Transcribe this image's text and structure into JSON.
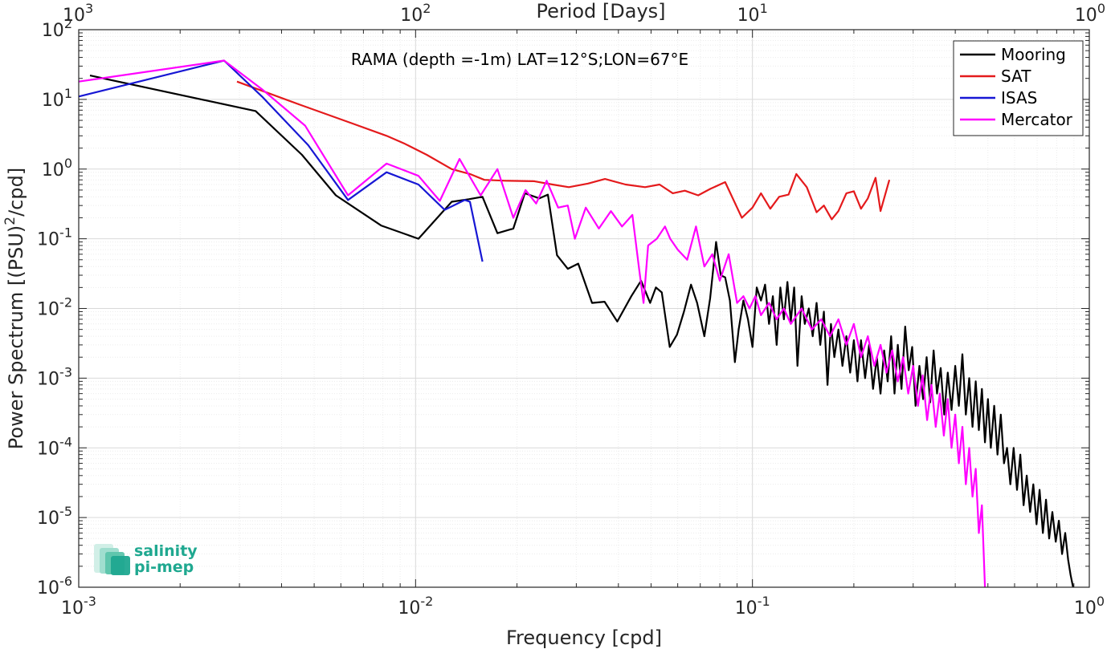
{
  "chart_data": {
    "type": "line",
    "annotation": "RAMA (depth =-1m) LAT=12°S;LON=67°E",
    "xlabel": "Frequency [cpd]",
    "ylabel": "Power Spectrum [(PSU)²/cpd]",
    "top_xlabel": "Period [Days]",
    "xscale": "log",
    "yscale": "log",
    "xlim": [
      0.001,
      1
    ],
    "ylim": [
      1e-06,
      100
    ],
    "grid": true,
    "legend_position": "top-right",
    "x_ticks": [
      {
        "value": 0.001,
        "base": "10",
        "exp": "-3"
      },
      {
        "value": 0.01,
        "base": "10",
        "exp": "-2"
      },
      {
        "value": 0.1,
        "base": "10",
        "exp": "-1"
      },
      {
        "value": 1,
        "base": "10",
        "exp": "0"
      }
    ],
    "y_ticks": [
      {
        "value": 1e-06,
        "base": "10",
        "exp": "-6"
      },
      {
        "value": 1e-05,
        "base": "10",
        "exp": "-5"
      },
      {
        "value": 0.0001,
        "base": "10",
        "exp": "-4"
      },
      {
        "value": 0.001,
        "base": "10",
        "exp": "-3"
      },
      {
        "value": 0.01,
        "base": "10",
        "exp": "-2"
      },
      {
        "value": 0.1,
        "base": "10",
        "exp": "-1"
      },
      {
        "value": 1,
        "base": "10",
        "exp": "0"
      },
      {
        "value": 10,
        "base": "10",
        "exp": "1"
      },
      {
        "value": 100,
        "base": "10",
        "exp": "2"
      }
    ],
    "top_ticks": [
      {
        "value": 0.001,
        "base": "10",
        "exp": "3"
      },
      {
        "value": 0.01,
        "base": "10",
        "exp": "2"
      },
      {
        "value": 0.1,
        "base": "10",
        "exp": "1"
      },
      {
        "value": 1,
        "base": "10",
        "exp": "0"
      }
    ],
    "series": [
      {
        "name": "Mooring",
        "color": "#000000",
        "points": [
          [
            0.00108,
            22
          ],
          [
            0.00335,
            6.8
          ],
          [
            0.0046,
            1.6
          ],
          [
            0.0058,
            0.42
          ],
          [
            0.0079,
            0.155
          ],
          [
            0.0102,
            0.1
          ],
          [
            0.0128,
            0.34
          ],
          [
            0.0144,
            0.37
          ],
          [
            0.0158,
            0.4
          ],
          [
            0.0175,
            0.12
          ],
          [
            0.0195,
            0.14
          ],
          [
            0.0211,
            0.45
          ],
          [
            0.0233,
            0.38
          ],
          [
            0.0247,
            0.43
          ],
          [
            0.0263,
            0.058
          ],
          [
            0.0283,
            0.037
          ],
          [
            0.0304,
            0.044
          ],
          [
            0.0334,
            0.012
          ],
          [
            0.0364,
            0.0125
          ],
          [
            0.0397,
            0.0065
          ],
          [
            0.0437,
            0.015
          ],
          [
            0.0467,
            0.025
          ],
          [
            0.0497,
            0.012
          ],
          [
            0.0517,
            0.02
          ],
          [
            0.0538,
            0.017
          ],
          [
            0.0568,
            0.0028
          ],
          [
            0.0597,
            0.0042
          ],
          [
            0.0626,
            0.009
          ],
          [
            0.0657,
            0.022
          ],
          [
            0.0685,
            0.012
          ],
          [
            0.072,
            0.004
          ],
          [
            0.0749,
            0.014
          ],
          [
            0.078,
            0.09
          ],
          [
            0.0805,
            0.03
          ],
          [
            0.083,
            0.028
          ],
          [
            0.0857,
            0.013
          ],
          [
            0.0887,
            0.0017
          ],
          [
            0.091,
            0.005
          ],
          [
            0.094,
            0.013
          ],
          [
            0.097,
            0.007
          ],
          [
            0.1,
            0.0028
          ],
          [
            0.103,
            0.02
          ],
          [
            0.106,
            0.013
          ],
          [
            0.109,
            0.022
          ],
          [
            0.112,
            0.006
          ],
          [
            0.115,
            0.015
          ],
          [
            0.118,
            0.003
          ],
          [
            0.121,
            0.02
          ],
          [
            0.124,
            0.007
          ],
          [
            0.127,
            0.024
          ],
          [
            0.13,
            0.0065
          ],
          [
            0.133,
            0.02
          ],
          [
            0.136,
            0.0015
          ],
          [
            0.14,
            0.015
          ],
          [
            0.143,
            0.006
          ],
          [
            0.147,
            0.01
          ],
          [
            0.151,
            0.004
          ],
          [
            0.155,
            0.012
          ],
          [
            0.159,
            0.003
          ],
          [
            0.163,
            0.009
          ],
          [
            0.167,
            0.0008
          ],
          [
            0.171,
            0.006
          ],
          [
            0.175,
            0.002
          ],
          [
            0.18,
            0.005
          ],
          [
            0.185,
            0.0015
          ],
          [
            0.19,
            0.004
          ],
          [
            0.195,
            0.0012
          ],
          [
            0.2,
            0.0035
          ],
          [
            0.205,
            0.0009
          ],
          [
            0.21,
            0.0035
          ],
          [
            0.216,
            0.001
          ],
          [
            0.222,
            0.003
          ],
          [
            0.228,
            0.0007
          ],
          [
            0.234,
            0.002
          ],
          [
            0.24,
            0.0006
          ],
          [
            0.246,
            0.0025
          ],
          [
            0.252,
            0.0009
          ],
          [
            0.258,
            0.004
          ],
          [
            0.264,
            0.0006
          ],
          [
            0.27,
            0.003
          ],
          [
            0.277,
            0.0007
          ],
          [
            0.284,
            0.0055
          ],
          [
            0.291,
            0.0013
          ],
          [
            0.298,
            0.0028
          ],
          [
            0.305,
            0.0004
          ],
          [
            0.313,
            0.0015
          ],
          [
            0.321,
            0.0005
          ],
          [
            0.329,
            0.002
          ],
          [
            0.337,
            0.00045
          ],
          [
            0.345,
            0.0025
          ],
          [
            0.353,
            0.0006
          ],
          [
            0.362,
            0.0014
          ],
          [
            0.371,
            0.0003
          ],
          [
            0.38,
            0.0012
          ],
          [
            0.39,
            0.00035
          ],
          [
            0.4,
            0.0015
          ],
          [
            0.41,
            0.0004
          ],
          [
            0.42,
            0.0022
          ],
          [
            0.43,
            0.0003
          ],
          [
            0.44,
            0.001
          ],
          [
            0.45,
            0.0002
          ],
          [
            0.46,
            0.0009
          ],
          [
            0.47,
            0.00018
          ],
          [
            0.48,
            0.0007
          ],
          [
            0.49,
            0.00012
          ],
          [
            0.5,
            0.0005
          ],
          [
            0.51,
            0.0001
          ],
          [
            0.522,
            0.0004
          ],
          [
            0.534,
            8e-05
          ],
          [
            0.546,
            0.0003
          ],
          [
            0.558,
            6e-05
          ],
          [
            0.57,
            0.0001
          ],
          [
            0.583,
            3e-05
          ],
          [
            0.596,
            0.0001
          ],
          [
            0.61,
            2.5e-05
          ],
          [
            0.624,
            8e-05
          ],
          [
            0.638,
            1.5e-05
          ],
          [
            0.652,
            4e-05
          ],
          [
            0.667,
            1.2e-05
          ],
          [
            0.682,
            3e-05
          ],
          [
            0.697,
            8e-06
          ],
          [
            0.712,
            2.5e-05
          ],
          [
            0.728,
            6e-06
          ],
          [
            0.744,
            1.8e-05
          ],
          [
            0.76,
            5e-06
          ],
          [
            0.777,
            1.2e-05
          ],
          [
            0.795,
            4.5e-06
          ],
          [
            0.812,
            9e-06
          ],
          [
            0.83,
            3e-06
          ],
          [
            0.848,
            6e-06
          ],
          [
            0.865,
            2.5e-06
          ],
          [
            0.88,
            1.5e-06
          ],
          [
            0.895,
            1e-06
          ]
        ]
      },
      {
        "name": "SAT",
        "color": "#e41a1c",
        "points": [
          [
            0.00295,
            18
          ],
          [
            0.0045,
            8.5
          ],
          [
            0.0065,
            4.5
          ],
          [
            0.0082,
            3
          ],
          [
            0.0093,
            2.3
          ],
          [
            0.0108,
            1.6
          ],
          [
            0.0128,
            1
          ],
          [
            0.0145,
            0.85
          ],
          [
            0.016,
            0.7
          ],
          [
            0.0185,
            0.68
          ],
          [
            0.0225,
            0.67
          ],
          [
            0.0255,
            0.6
          ],
          [
            0.0285,
            0.55
          ],
          [
            0.0325,
            0.62
          ],
          [
            0.0365,
            0.72
          ],
          [
            0.042,
            0.6
          ],
          [
            0.048,
            0.55
          ],
          [
            0.053,
            0.6
          ],
          [
            0.058,
            0.45
          ],
          [
            0.063,
            0.49
          ],
          [
            0.069,
            0.42
          ],
          [
            0.075,
            0.52
          ],
          [
            0.083,
            0.65
          ],
          [
            0.093,
            0.2
          ],
          [
            0.1,
            0.28
          ],
          [
            0.106,
            0.45
          ],
          [
            0.113,
            0.27
          ],
          [
            0.12,
            0.4
          ],
          [
            0.128,
            0.43
          ],
          [
            0.135,
            0.85
          ],
          [
            0.145,
            0.55
          ],
          [
            0.155,
            0.24
          ],
          [
            0.163,
            0.3
          ],
          [
            0.172,
            0.19
          ],
          [
            0.18,
            0.25
          ],
          [
            0.19,
            0.45
          ],
          [
            0.2,
            0.48
          ],
          [
            0.21,
            0.27
          ],
          [
            0.22,
            0.38
          ],
          [
            0.232,
            0.75
          ],
          [
            0.24,
            0.25
          ],
          [
            0.255,
            0.7
          ]
        ]
      },
      {
        "name": "ISAS",
        "color": "#1717d4",
        "points": [
          [
            0.001,
            11
          ],
          [
            0.0027,
            36
          ],
          [
            0.0035,
            11
          ],
          [
            0.0048,
            2.2
          ],
          [
            0.0063,
            0.36
          ],
          [
            0.0082,
            0.9
          ],
          [
            0.0102,
            0.6
          ],
          [
            0.0122,
            0.26
          ],
          [
            0.014,
            0.36
          ],
          [
            0.0145,
            0.34
          ],
          [
            0.0158,
            0.047
          ]
        ]
      },
      {
        "name": "Mercator",
        "color": "#ff00ff",
        "points": [
          [
            0.001,
            18
          ],
          [
            0.0027,
            36
          ],
          [
            0.0035,
            14
          ],
          [
            0.0047,
            4.2
          ],
          [
            0.0063,
            0.42
          ],
          [
            0.0082,
            1.2
          ],
          [
            0.0102,
            0.8
          ],
          [
            0.0118,
            0.35
          ],
          [
            0.0135,
            1.4
          ],
          [
            0.0156,
            0.42
          ],
          [
            0.0175,
            1
          ],
          [
            0.0195,
            0.2
          ],
          [
            0.0212,
            0.5
          ],
          [
            0.0228,
            0.32
          ],
          [
            0.0245,
            0.68
          ],
          [
            0.0265,
            0.28
          ],
          [
            0.0283,
            0.3
          ],
          [
            0.0297,
            0.1
          ],
          [
            0.032,
            0.28
          ],
          [
            0.035,
            0.14
          ],
          [
            0.038,
            0.25
          ],
          [
            0.041,
            0.15
          ],
          [
            0.044,
            0.22
          ],
          [
            0.046,
            0.04
          ],
          [
            0.0475,
            0.012
          ],
          [
            0.049,
            0.08
          ],
          [
            0.052,
            0.1
          ],
          [
            0.055,
            0.15
          ],
          [
            0.057,
            0.1
          ],
          [
            0.06,
            0.07
          ],
          [
            0.064,
            0.05
          ],
          [
            0.068,
            0.15
          ],
          [
            0.072,
            0.04
          ],
          [
            0.076,
            0.06
          ],
          [
            0.08,
            0.025
          ],
          [
            0.085,
            0.06
          ],
          [
            0.09,
            0.012
          ],
          [
            0.094,
            0.015
          ],
          [
            0.098,
            0.01
          ],
          [
            0.102,
            0.015
          ],
          [
            0.106,
            0.008
          ],
          [
            0.112,
            0.012
          ],
          [
            0.118,
            0.007
          ],
          [
            0.124,
            0.01
          ],
          [
            0.13,
            0.006
          ],
          [
            0.14,
            0.01
          ],
          [
            0.15,
            0.005
          ],
          [
            0.16,
            0.007
          ],
          [
            0.17,
            0.004
          ],
          [
            0.18,
            0.007
          ],
          [
            0.19,
            0.003
          ],
          [
            0.2,
            0.006
          ],
          [
            0.21,
            0.002
          ],
          [
            0.22,
            0.004
          ],
          [
            0.23,
            0.0015
          ],
          [
            0.24,
            0.003
          ],
          [
            0.25,
            0.0012
          ],
          [
            0.26,
            0.0025
          ],
          [
            0.27,
            0.0009
          ],
          [
            0.28,
            0.002
          ],
          [
            0.29,
            0.0006
          ],
          [
            0.3,
            0.0015
          ],
          [
            0.31,
            0.0004
          ],
          [
            0.32,
            0.0011
          ],
          [
            0.33,
            0.00025
          ],
          [
            0.34,
            0.0008
          ],
          [
            0.35,
            0.0002
          ],
          [
            0.36,
            0.0006
          ],
          [
            0.37,
            0.00015
          ],
          [
            0.38,
            0.0005
          ],
          [
            0.39,
            0.0001
          ],
          [
            0.4,
            0.0003
          ],
          [
            0.41,
            6e-05
          ],
          [
            0.42,
            0.0002
          ],
          [
            0.43,
            3e-05
          ],
          [
            0.44,
            0.0001
          ],
          [
            0.45,
            2e-05
          ],
          [
            0.46,
            5e-05
          ],
          [
            0.47,
            6e-06
          ],
          [
            0.48,
            1.5e-05
          ],
          [
            0.49,
            1e-06
          ]
        ]
      }
    ]
  },
  "logo": {
    "line1": "salinity",
    "line2": "pi-mep",
    "color": "#1fa890"
  }
}
